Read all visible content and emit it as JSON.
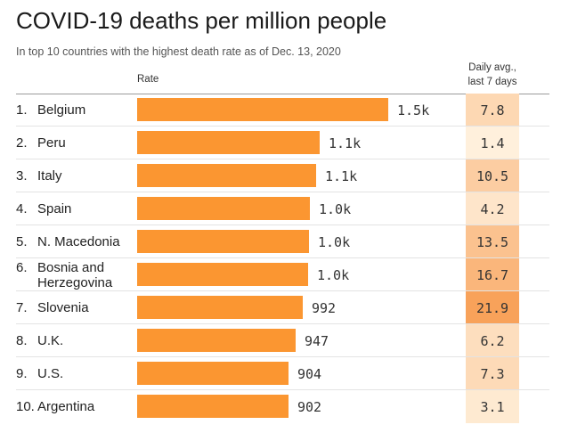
{
  "title": "COVID-19 deaths per million people",
  "subtitle": "In top 10 countries with the highest death rate as of Dec. 13, 2020",
  "columns": {
    "rate": "Rate",
    "daily_line1": "Daily avg.,",
    "daily_line2": "last 7 days"
  },
  "colors": {
    "bar": "#fb9631",
    "daily_scale_low": "#fff0dc",
    "daily_scale_high": "#f8a25a"
  },
  "chart_data": {
    "type": "bar",
    "orientation": "horizontal",
    "title": "COVID-19 deaths per million people",
    "subtitle": "In top 10 countries with the highest death rate as of Dec. 13, 2020",
    "xlabel": "Rate",
    "xlim": [
      0,
      1500
    ],
    "grid": false,
    "categories": [
      "Belgium",
      "Peru",
      "Italy",
      "Spain",
      "N. Macedonia",
      "Bosnia and Herzegovina",
      "Slovenia",
      "U.K.",
      "U.S.",
      "Argentina"
    ],
    "ranks": [
      "1.",
      "2.",
      "3.",
      "4.",
      "5.",
      "6.",
      "7.",
      "8.",
      "9.",
      "10."
    ],
    "values": [
      1500,
      1090,
      1070,
      1030,
      1025,
      1020,
      992,
      947,
      904,
      902
    ],
    "value_labels": [
      "1.5k",
      "1.1k",
      "1.1k",
      "1.0k",
      "1.0k",
      "1.0k",
      "992",
      "947",
      "904",
      "902"
    ],
    "daily_avg_last_7_days": [
      7.8,
      1.4,
      10.5,
      4.2,
      13.5,
      16.7,
      21.9,
      6.2,
      7.3,
      3.1
    ],
    "daily_labels": [
      "7.8",
      "1.4",
      "10.5",
      "4.2",
      "13.5",
      "16.7",
      "21.9",
      "6.2",
      "7.3",
      "3.1"
    ]
  }
}
